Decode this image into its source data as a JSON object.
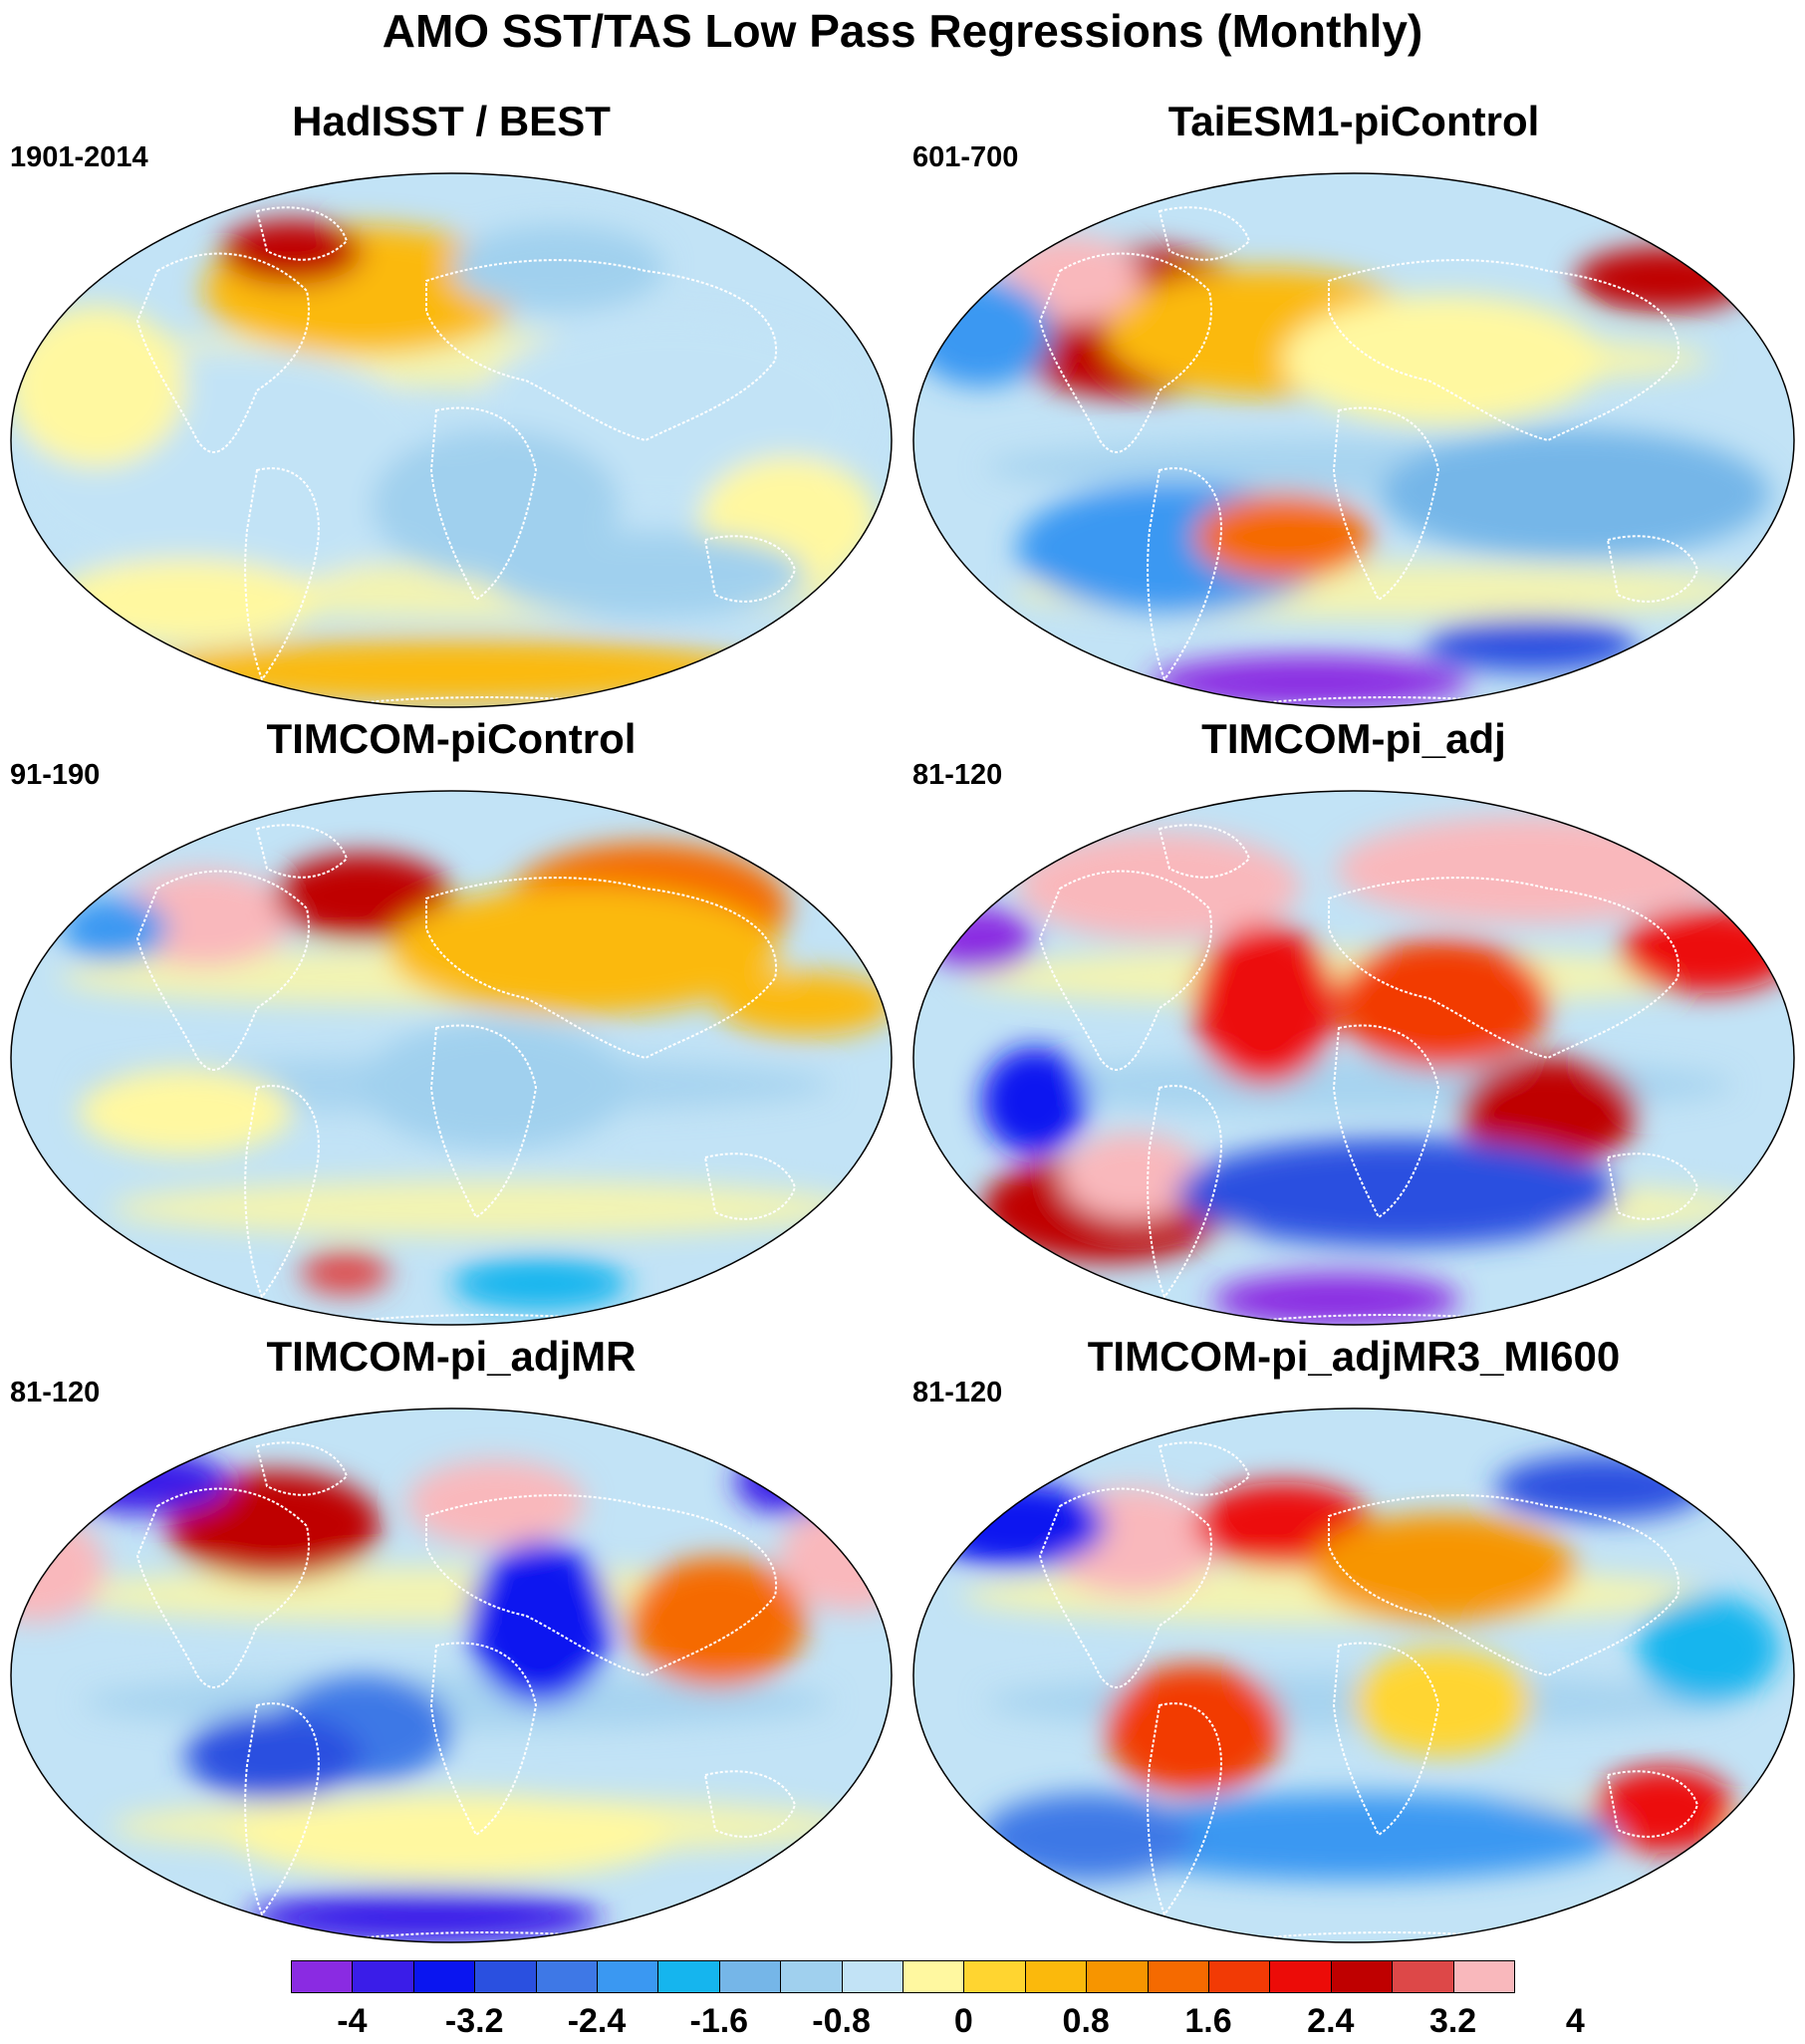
{
  "title": "AMO SST/TAS Low Pass Regressions (Monthly)",
  "panels": [
    {
      "name": "HadISST / BEST",
      "period": "1901-2014"
    },
    {
      "name": "TaiESM1-piControl",
      "period": "601-700"
    },
    {
      "name": "TIMCOM-piControl",
      "period": "91-190"
    },
    {
      "name": "TIMCOM-pi_adj",
      "period": "81-120"
    },
    {
      "name": "TIMCOM-pi_adjMR",
      "period": "81-120"
    },
    {
      "name": "TIMCOM-pi_adjMR3_MI600",
      "period": "81-120"
    }
  ],
  "projection": "Winkel tripel / elliptical global map",
  "colorbar": {
    "colors": [
      "#8a2be2",
      "#3a1de8",
      "#0a15f0",
      "#2a50e0",
      "#3e78e6",
      "#3a98f2",
      "#15b5ee",
      "#75b6e8",
      "#a0d0ee",
      "#c2e3f6",
      "#fff8a0",
      "#ffd530",
      "#fbb90c",
      "#f79500",
      "#f56a00",
      "#f23a05",
      "#ec0c08",
      "#bf0000",
      "#dd4848",
      "#f9b8bc"
    ],
    "tick_labels": [
      "-4",
      "-3.2",
      "-2.4",
      "-1.6",
      "-0.8",
      "0",
      "0.8",
      "1.6",
      "2.4",
      "3.2",
      "4"
    ]
  }
}
